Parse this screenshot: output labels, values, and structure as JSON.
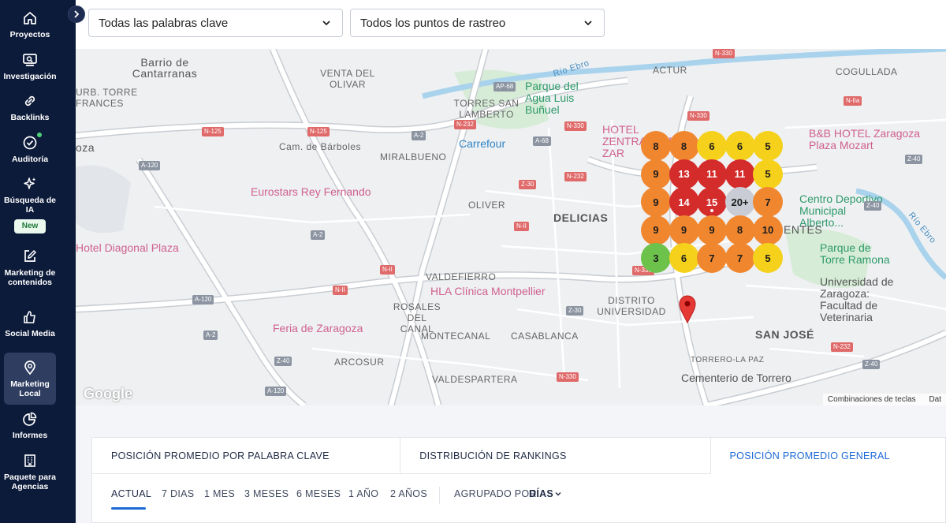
{
  "sidebar": {
    "items": [
      {
        "label": "Proyectos",
        "icon": "home-icon"
      },
      {
        "label": "Investigación",
        "icon": "research-icon"
      },
      {
        "label": "Backlinks",
        "icon": "link-icon"
      },
      {
        "label": "Auditoría",
        "icon": "check-circle-icon"
      },
      {
        "label": "Búsqueda de IA",
        "icon": "sparkle-icon",
        "badge": "New"
      },
      {
        "label": "Marketing de contenidos",
        "icon": "edit-icon"
      },
      {
        "label": "Social Media",
        "icon": "thumbs-up-icon"
      },
      {
        "label": "Marketing Local",
        "icon": "location-pin-icon"
      },
      {
        "label": "Informes",
        "icon": "pie-chart-icon"
      },
      {
        "label": "Paquete para Agencias",
        "icon": "building-icon"
      }
    ]
  },
  "filters": {
    "keywords": "Todas las palabras clave",
    "points": "Todos los puntos de rastreo"
  },
  "map": {
    "labels": {
      "barrio": "Barrio de Cantarranas",
      "venta": "VENTA DEL OLIVAR",
      "torre_frances": "URB. TORRE FRANCES",
      "torres_lamberto": "TORRES SAN LAMBERTO",
      "actur": "ACTUR",
      "cogullada": "COGULLADA",
      "barboles": "Cam. de Bárboles",
      "miralbueno": "MIRALBUENO",
      "oliver": "OLIVER",
      "delicias": "DELICIAS",
      "valdefierro": "VALDEFIERRO",
      "rosales": "ROSALES DEL CANAL",
      "distrito": "DISTRITO UNIVERSIDAD",
      "montecanal": "MONTECANAL",
      "casablanca": "CASABLANCA",
      "arcosur": "ARCOSUR",
      "valdespartera": "VALDESPARTERA",
      "san_jose": "SAN JOSÉ",
      "torrero": "TORRERO-LA PAZ",
      "rio_ebro_1": "Río Ebro",
      "rio_ebro_2": "Río Ebro",
      "entes": "ENTES",
      "oza": "oza"
    },
    "pois": {
      "parque_agua": "Parque del Agua Luis Buñuel",
      "hotel_zentral": "HOTEL ZENTRAL AVE ZAR",
      "bb_hotel": "B&B HOTEL Zaragoza Plaza Mozart",
      "carrefour": "Carrefour",
      "eurostars": "Eurostars Rey Fernando",
      "centro_deportivo": "Centro Deportivo Municipal Alberto...",
      "hotel_diagonal": "Hotel Diagonal Plaza",
      "parque_ramona": "Parque de Torre Ramona",
      "hla": "HLA Clínica Montpellier",
      "universidad": "Universidad de Zaragoza: Facultad de Veterinaria",
      "feria": "Feria de Zaragoza",
      "cementerio": "Cementerio de Torrero"
    },
    "roads": [
      "AP-68",
      "N-125",
      "N-125",
      "N-232",
      "A-2",
      "A-68",
      "N-330",
      "N-IIa",
      "A-120",
      "Z-30",
      "N-232",
      "N-II",
      "A-2",
      "N-II",
      "N-II",
      "A-120",
      "Z-40",
      "A-2",
      "Z-40",
      "A-120",
      "N-330",
      "N-330",
      "Z-30",
      "N-232",
      "Z-40",
      "Z-40",
      "N-330",
      "N-330"
    ],
    "grid": [
      [
        "8",
        "8",
        "6",
        "6",
        "5"
      ],
      [
        "9",
        "13",
        "11",
        "11",
        "5"
      ],
      [
        "9",
        "14",
        "15",
        "20+",
        "7"
      ],
      [
        "9",
        "9",
        "9",
        "8",
        "10"
      ],
      [
        "3",
        "6",
        "7",
        "7",
        "5"
      ]
    ],
    "grid_colors": {
      "red": "#d42b2b",
      "orange": "#f0872f",
      "yellow": "#f5d11b",
      "green": "#6cc24a",
      "gray": "#c9ccd4"
    },
    "google": "Google",
    "footer_shortcuts": "Combinaciones de teclas",
    "footer_data": "Dat"
  },
  "panel": {
    "tabs": [
      "POSICIÓN PROMEDIO POR PALABRA CLAVE",
      "DISTRIBUCIÓN DE RANKINGS",
      "POSICIÓN PROMEDIO GENERAL"
    ],
    "periods": [
      "ACTUAL",
      "7 DIAS",
      "1 MES",
      "3 MESES",
      "6 MESES",
      "1 AÑO",
      "2 AÑOS"
    ],
    "grouped_label": "AGRUPADO POR:",
    "grouped_value": "DÍAS"
  }
}
